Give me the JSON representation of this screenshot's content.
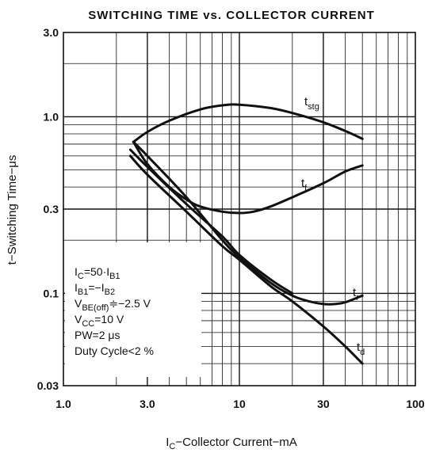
{
  "chart_data": {
    "type": "line",
    "title": "SWITCHING TIME vs. COLLECTOR CURRENT",
    "xlabel": {
      "main": "I",
      "sub": "C",
      "rest": "−Collector Current−mA"
    },
    "ylabel": "t−Switching Time−μs",
    "x_scale": "log",
    "y_scale": "log",
    "xlim": [
      1.0,
      100
    ],
    "ylim": [
      0.03,
      3.0
    ],
    "x_ticks": [
      {
        "value": 1.0,
        "label": "1.0"
      },
      {
        "value": 3.0,
        "label": "3.0"
      },
      {
        "value": 10,
        "label": "10"
      },
      {
        "value": 30,
        "label": "30"
      },
      {
        "value": 100,
        "label": "100"
      }
    ],
    "y_ticks": [
      {
        "value": 3.0,
        "label": "3.0"
      },
      {
        "value": 1.0,
        "label": "1.0"
      },
      {
        "value": 0.3,
        "label": "0.3"
      },
      {
        "value": 0.1,
        "label": "0.1"
      },
      {
        "value": 0.03,
        "label": "0.03"
      }
    ],
    "grid": true,
    "series": [
      {
        "label": {
          "main": "t",
          "sub": "stg"
        },
        "x": [
          2.5,
          3,
          4,
          6,
          8,
          10,
          15,
          20,
          30,
          40,
          50
        ],
        "y": [
          0.72,
          0.82,
          0.95,
          1.1,
          1.16,
          1.17,
          1.12,
          1.05,
          0.93,
          0.83,
          0.75
        ]
      },
      {
        "label": {
          "main": "t",
          "sub": "f"
        },
        "x": [
          2.5,
          3,
          4,
          5,
          6,
          8,
          10,
          12,
          15,
          20,
          30,
          40,
          50
        ],
        "y": [
          0.72,
          0.54,
          0.4,
          0.34,
          0.31,
          0.29,
          0.285,
          0.29,
          0.31,
          0.35,
          0.42,
          0.49,
          0.53
        ]
      },
      {
        "label": {
          "main": "t",
          "sub": "r"
        },
        "x": [
          2.5,
          3,
          5,
          8,
          10,
          15,
          20,
          25,
          30,
          35,
          40,
          50
        ],
        "y": [
          0.72,
          0.6,
          0.35,
          0.2,
          0.16,
          0.115,
          0.097,
          0.09,
          0.087,
          0.087,
          0.089,
          0.097
        ]
      },
      {
        "label": {
          "main": "t",
          "sub": "d"
        },
        "x": [
          2.4,
          3,
          5,
          8,
          10,
          15,
          20,
          30,
          40,
          50
        ],
        "y": [
          0.6,
          0.47,
          0.29,
          0.185,
          0.155,
          0.11,
          0.09,
          0.065,
          0.05,
          0.04
        ]
      },
      {
        "label": null,
        "x": [
          2.4,
          3,
          5,
          8,
          10,
          15,
          20
        ],
        "y": [
          0.65,
          0.52,
          0.32,
          0.21,
          0.165,
          0.12,
          0.1
        ]
      }
    ],
    "conditions": [
      {
        "main": "I",
        "sub": "C",
        "rest": "=50·I",
        "sub2": "B1"
      },
      {
        "main": "I",
        "sub": "B1",
        "rest": "=−I",
        "sub2": "B2"
      },
      {
        "main": "V",
        "sub": "BE(off)",
        "rest": "≑−2.5 V"
      },
      {
        "main": "V",
        "sub": "CC",
        "rest": "=10 V"
      },
      {
        "main": "PW=2 μs"
      },
      {
        "main": "Duty Cycle<2 %"
      }
    ]
  }
}
